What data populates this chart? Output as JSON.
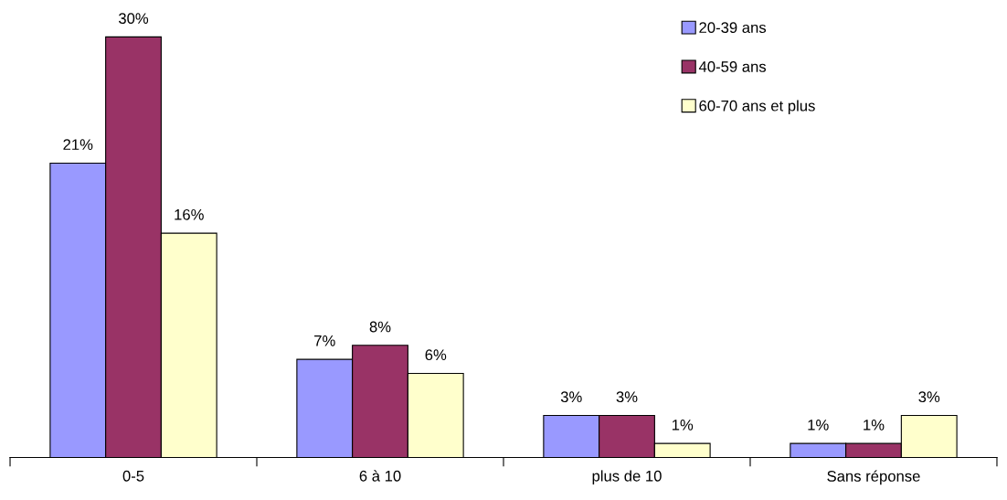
{
  "chart_data": {
    "type": "bar",
    "categories": [
      "0-5",
      "6 à 10",
      "plus de 10",
      "Sans réponse"
    ],
    "series": [
      {
        "name": "20-39 ans",
        "color": "#9999ff",
        "values": [
          21,
          7,
          3,
          1
        ],
        "value_labels": [
          "21%",
          "7%",
          "3%",
          "1%"
        ]
      },
      {
        "name": "40-59 ans",
        "color": "#993366",
        "values": [
          30,
          8,
          3,
          1
        ],
        "value_labels": [
          "30%",
          "8%",
          "3%",
          "1%"
        ]
      },
      {
        "name": "60-70 ans et plus",
        "color": "#ffffcc",
        "values": [
          16,
          6,
          1,
          3
        ],
        "value_labels": [
          "16%",
          "6%",
          "1%",
          "3%"
        ]
      }
    ],
    "legend": "top right",
    "grid": false
  }
}
